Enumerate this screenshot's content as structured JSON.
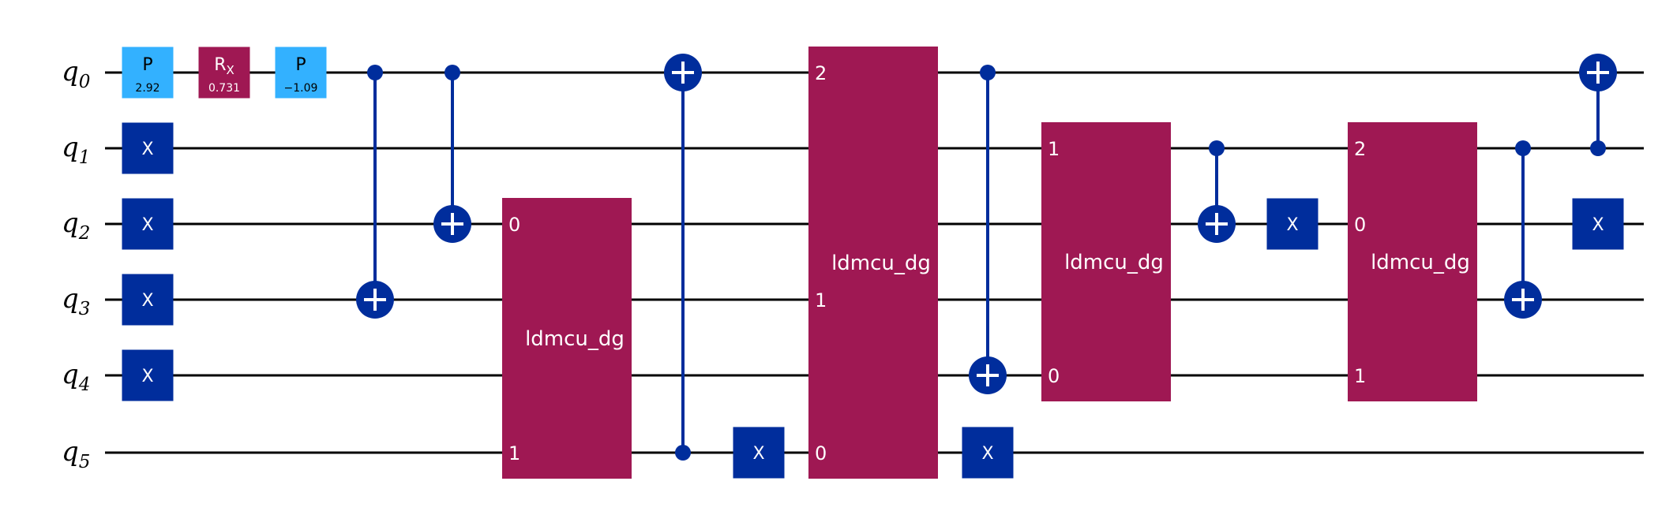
{
  "qubits": [
    {
      "label": "q",
      "sub": "0"
    },
    {
      "label": "q",
      "sub": "1"
    },
    {
      "label": "q",
      "sub": "2"
    },
    {
      "label": "q",
      "sub": "3"
    },
    {
      "label": "q",
      "sub": "4"
    },
    {
      "label": "q",
      "sub": "5"
    }
  ],
  "colors": {
    "wire": "#000000",
    "cnot": "#002D9C",
    "x_gate": "#002D9C",
    "p_gate": "#33B1FF",
    "rx_gate": "#9F1853",
    "custom_gate": "#9F1853"
  },
  "gates": [
    {
      "type": "single",
      "qubit": 0,
      "label": "P",
      "param": "2.92",
      "style": "p"
    },
    {
      "type": "single",
      "qubit": 1,
      "label": "X",
      "style": "x"
    },
    {
      "type": "single",
      "qubit": 2,
      "label": "X",
      "style": "x"
    },
    {
      "type": "single",
      "qubit": 3,
      "label": "X",
      "style": "x"
    },
    {
      "type": "single",
      "qubit": 4,
      "label": "X",
      "style": "x"
    },
    {
      "type": "single",
      "qubit": 0,
      "label": "R",
      "label_sub": "X",
      "param": "0.731",
      "style": "rx"
    },
    {
      "type": "single",
      "qubit": 0,
      "label": "P",
      "param": "−1.09",
      "style": "p"
    },
    {
      "type": "cx",
      "control": 0,
      "target": 3
    },
    {
      "type": "cx",
      "control": 0,
      "target": 2
    },
    {
      "type": "multi",
      "name": "ldmcu_dg",
      "from": 2,
      "to": 5,
      "ports": [
        {
          "qubit": 2,
          "label": "0"
        },
        {
          "qubit": 5,
          "label": "1"
        }
      ]
    },
    {
      "type": "cx",
      "control": 5,
      "target": 0
    },
    {
      "type": "single",
      "qubit": 5,
      "label": "X",
      "style": "x"
    },
    {
      "type": "multi",
      "name": "ldmcu_dg",
      "from": 0,
      "to": 5,
      "ports": [
        {
          "qubit": 0,
          "label": "2"
        },
        {
          "qubit": 3,
          "label": "1"
        },
        {
          "qubit": 5,
          "label": "0"
        }
      ]
    },
    {
      "type": "cx",
      "control": 0,
      "target": 4
    },
    {
      "type": "single",
      "qubit": 5,
      "label": "X",
      "style": "x"
    },
    {
      "type": "multi",
      "name": "ldmcu_dg",
      "from": 1,
      "to": 4,
      "ports": [
        {
          "qubit": 1,
          "label": "1"
        },
        {
          "qubit": 4,
          "label": "0"
        }
      ]
    },
    {
      "type": "cx",
      "control": 1,
      "target": 2
    },
    {
      "type": "single",
      "qubit": 2,
      "label": "X",
      "style": "x"
    },
    {
      "type": "multi",
      "name": "ldmcu_dg",
      "from": 1,
      "to": 4,
      "ports": [
        {
          "qubit": 1,
          "label": "2"
        },
        {
          "qubit": 2,
          "label": "0"
        },
        {
          "qubit": 4,
          "label": "1"
        }
      ]
    },
    {
      "type": "cx",
      "control": 1,
      "target": 3
    },
    {
      "type": "cx",
      "control": 1,
      "target": 0
    },
    {
      "type": "single",
      "qubit": 2,
      "label": "X",
      "style": "x"
    }
  ]
}
